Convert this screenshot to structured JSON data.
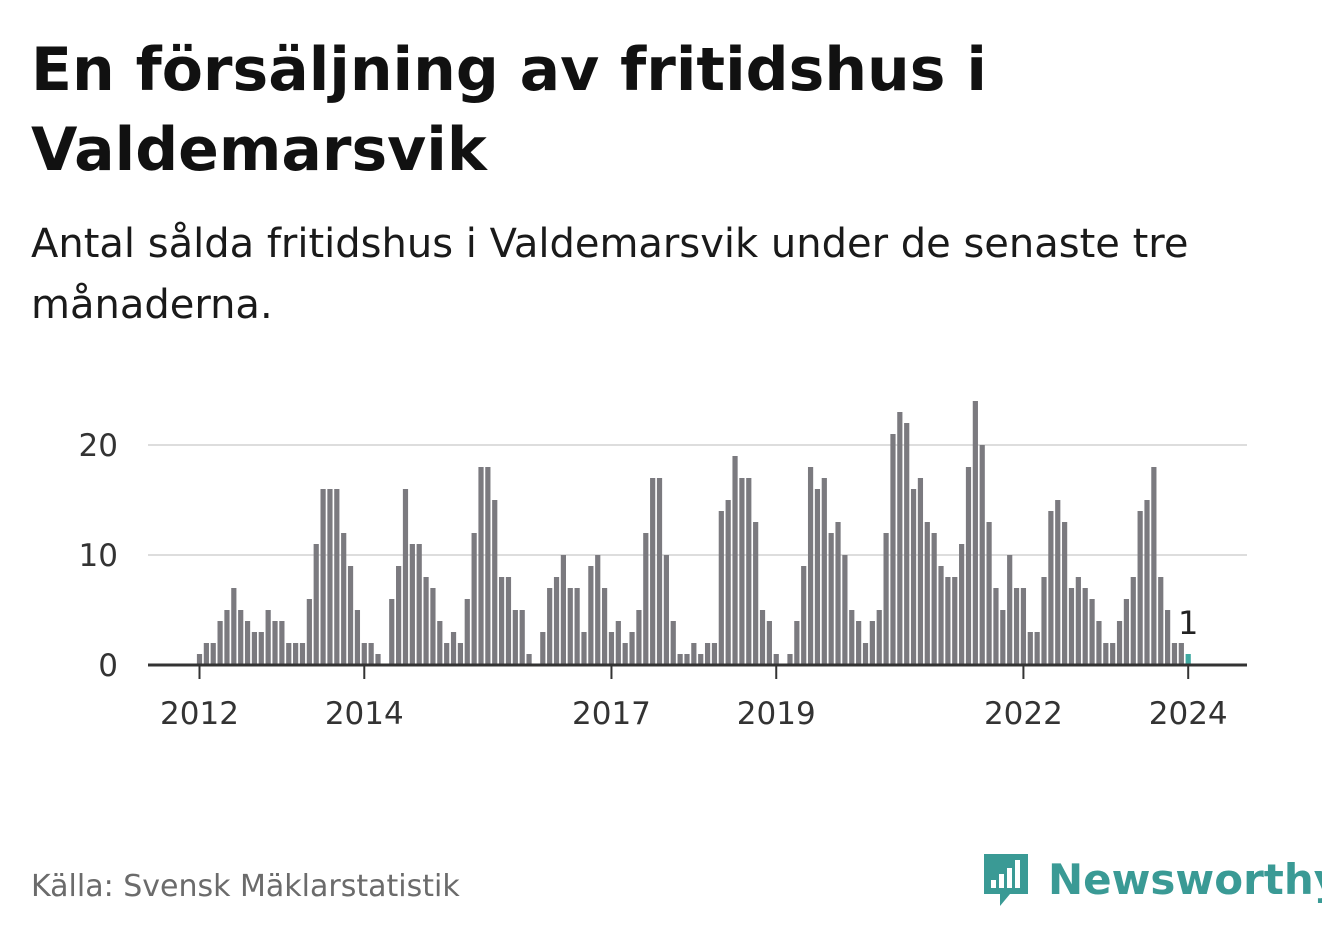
{
  "header": {
    "title": "En försäljning av fritidshus i Valdemarsvik",
    "subtitle": "Antal sålda fritidshus i Valdemarsvik under de senaste tre månaderna."
  },
  "footer": {
    "source": "Källa: Svensk Mäklarstatistik",
    "brand": "Newsworthy",
    "brand_icon": "bar-chart-speech-bubble-icon"
  },
  "colors": {
    "bar": "#7b7a7f",
    "highlight": "#3fa9a1",
    "grid": "#dddddd",
    "axis": "#333333",
    "brand": "#3a9a95"
  },
  "chart_data": {
    "type": "bar",
    "title": "En försäljning av fritidshus i Valdemarsvik",
    "subtitle": "Antal sålda fritidshus i Valdemarsvik under de senaste tre månaderna.",
    "xlabel": "",
    "ylabel": "",
    "start_month": "2011-07",
    "end_month": "2024-01",
    "ylim": [
      0,
      24
    ],
    "yticks": [
      0,
      10,
      20
    ],
    "xticks": [
      "2012",
      "2014",
      "2017",
      "2019",
      "2022",
      "2024"
    ],
    "grid": true,
    "legend": "none",
    "highlight_label": "1",
    "values": [
      0,
      0,
      0,
      0,
      0,
      0,
      1,
      2,
      2,
      4,
      5,
      7,
      5,
      4,
      3,
      3,
      5,
      4,
      4,
      2,
      2,
      2,
      6,
      11,
      16,
      16,
      16,
      12,
      9,
      5,
      2,
      2,
      1,
      0,
      6,
      9,
      16,
      11,
      11,
      8,
      7,
      4,
      2,
      3,
      2,
      6,
      12,
      18,
      18,
      15,
      8,
      8,
      5,
      5,
      1,
      0,
      3,
      7,
      8,
      10,
      7,
      7,
      3,
      9,
      10,
      7,
      3,
      4,
      2,
      3,
      5,
      12,
      17,
      17,
      10,
      4,
      1,
      1,
      2,
      1,
      2,
      2,
      14,
      15,
      19,
      17,
      17,
      13,
      5,
      4,
      1,
      0,
      1,
      4,
      9,
      18,
      16,
      17,
      12,
      13,
      10,
      5,
      4,
      2,
      4,
      5,
      12,
      21,
      23,
      22,
      16,
      17,
      13,
      12,
      9,
      8,
      8,
      11,
      18,
      24,
      20,
      13,
      7,
      5,
      10,
      7,
      7,
      3,
      3,
      8,
      14,
      15,
      13,
      7,
      8,
      7,
      6,
      4,
      2,
      2,
      4,
      6,
      8,
      14,
      15,
      18,
      8,
      5,
      2,
      2,
      1
    ]
  }
}
